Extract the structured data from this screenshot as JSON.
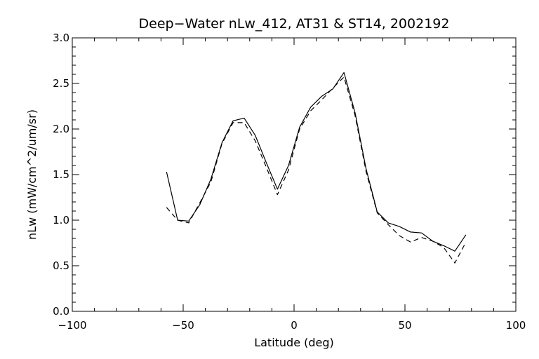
{
  "chart_data": {
    "type": "line",
    "title": "Deep−Water nLw_412, AT31 & ST14, 2002192",
    "xlabel": "Latitude (deg)",
    "ylabel": "nLw (mW/cm^2/um/sr)",
    "xlim": [
      -100,
      100
    ],
    "ylim": [
      0.0,
      3.0
    ],
    "xticks": [
      -100,
      -50,
      0,
      50,
      100
    ],
    "xtick_labels": [
      "−100",
      "−50",
      "0",
      "50",
      "100"
    ],
    "yticks": [
      0.0,
      0.5,
      1.0,
      1.5,
      2.0,
      2.5,
      3.0
    ],
    "ytick_labels": [
      "0.0",
      "0.5",
      "1.0",
      "1.5",
      "2.0",
      "2.5",
      "3.0"
    ],
    "grid": false,
    "legend": "none",
    "series": [
      {
        "style": "solid",
        "x": [
          -57.5,
          -52.5,
          -47.5,
          -42.5,
          -37.5,
          -32.5,
          -27.5,
          -22.5,
          -17.5,
          -12.5,
          -7.5,
          -2.5,
          2.5,
          7.5,
          12.5,
          17.5,
          22.5,
          27.5,
          32.5,
          37.5,
          42.5,
          47.5,
          52.5,
          57.5,
          62.5,
          67.5,
          72.5,
          77.5
        ],
        "values": [
          1.53,
          1.0,
          0.99,
          1.17,
          1.45,
          1.85,
          2.09,
          2.12,
          1.93,
          1.63,
          1.34,
          1.6,
          2.02,
          2.24,
          2.36,
          2.44,
          2.62,
          2.18,
          1.56,
          1.09,
          0.97,
          0.93,
          0.87,
          0.86,
          0.77,
          0.72,
          0.66,
          0.84
        ]
      },
      {
        "style": "dashed",
        "x": [
          -57.5,
          -52.5,
          -47.5,
          -42.5,
          -37.5,
          -32.5,
          -27.5,
          -22.5,
          -17.5,
          -12.5,
          -7.5,
          -2.5,
          2.5,
          7.5,
          12.5,
          17.5,
          22.5,
          27.5,
          32.5,
          37.5,
          42.5,
          47.5,
          52.5,
          57.5,
          62.5,
          67.5,
          72.5,
          77.5
        ],
        "values": [
          1.14,
          1.0,
          0.97,
          1.19,
          1.42,
          1.84,
          2.07,
          2.07,
          1.87,
          1.58,
          1.28,
          1.55,
          2.0,
          2.2,
          2.32,
          2.45,
          2.57,
          2.15,
          1.53,
          1.08,
          0.95,
          0.83,
          0.76,
          0.81,
          0.77,
          0.7,
          0.53,
          0.76
        ]
      }
    ]
  }
}
